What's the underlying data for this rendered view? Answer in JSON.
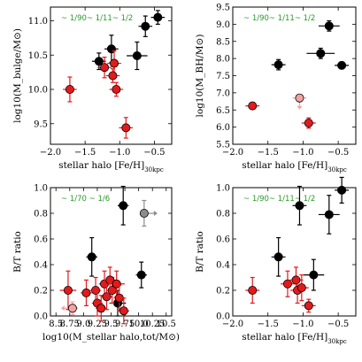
{
  "colors": {
    "black_series": "#000000",
    "red_series": "#e31a1c",
    "faded_red": "#f4a3a3",
    "gray_series": "#8c8c8c",
    "annotation": "#2a9a2a"
  },
  "chart_data": [
    {
      "type": "scatter",
      "xlabel": "stellar halo [Fe/H]",
      "xlabel_sub": "30kpc",
      "ylabel": "log10(M_bulge/M⊙)",
      "xlim": [
        -2.0,
        -0.25
      ],
      "ylim": [
        9.2,
        11.2
      ],
      "xticks": [
        -2.0,
        -1.5,
        -1.0,
        -0.5
      ],
      "xtick_labels": [
        "−2.0",
        "−1.5",
        "−1.0",
        "−0.5"
      ],
      "yticks": [
        9.5,
        10.0,
        10.5,
        11.0
      ],
      "ytick_labels": [
        "9.5",
        "10.0",
        "10.5",
        "11.0"
      ],
      "annotation": "~ 1/90~ 1/11~ 1/2",
      "series": [
        {
          "color": "black",
          "points": [
            {
              "x": -1.3,
              "y": 10.41,
              "xerr": 0.1,
              "yerr": 0.12
            },
            {
              "x": -1.12,
              "y": 10.59,
              "xerr": 0.1,
              "yerr": 0.2
            },
            {
              "x": -0.75,
              "y": 10.49,
              "xerr": 0.15,
              "yerr": 0.2
            },
            {
              "x": -0.63,
              "y": 10.92,
              "xerr": 0.1,
              "yerr": 0.15
            },
            {
              "x": -0.45,
              "y": 11.05,
              "xerr": 0.1,
              "yerr": 0.1
            }
          ]
        },
        {
          "color": "red",
          "points": [
            {
              "x": -1.72,
              "y": 10.0,
              "xerr": 0.1,
              "yerr": 0.18
            },
            {
              "x": -1.22,
              "y": 10.32,
              "xerr": 0.1,
              "yerr": 0.15
            },
            {
              "x": -1.08,
              "y": 10.38,
              "xerr": 0.1,
              "yerr": 0.18
            },
            {
              "x": -1.1,
              "y": 10.2,
              "xerr": 0.1,
              "yerr": 0.1
            },
            {
              "x": -1.05,
              "y": 10.0,
              "xerr": 0.1,
              "yerr": 0.1
            },
            {
              "x": -0.91,
              "y": 9.44,
              "xerr": 0.1,
              "yerr": 0.15
            }
          ]
        }
      ]
    },
    {
      "type": "scatter",
      "xlabel": "stellar halo [Fe/H]",
      "xlabel_sub": "30kpc",
      "ylabel": "log10(M_BH/M⊙)",
      "xlim": [
        -2.0,
        -0.25
      ],
      "ylim": [
        5.5,
        9.5
      ],
      "xticks": [
        -2.0,
        -1.5,
        -1.0,
        -0.5
      ],
      "xtick_labels": [
        "−2.0",
        "−1.5",
        "−1.0",
        "−0.5"
      ],
      "yticks": [
        5.5,
        6.0,
        6.5,
        7.0,
        7.5,
        8.0,
        8.5,
        9.0,
        9.5
      ],
      "ytick_labels": [
        "5.5",
        "6.0",
        "6.5",
        "7.0",
        "7.5",
        "8.0",
        "8.5",
        "9.0",
        "9.5"
      ],
      "annotation": "~ 1/90~ 1/11~ 1/2",
      "series": [
        {
          "color": "black",
          "points": [
            {
              "x": -1.35,
              "y": 7.82,
              "xerr": 0.1,
              "yerr": 0.15
            },
            {
              "x": -0.75,
              "y": 8.15,
              "xerr": 0.2,
              "yerr": 0.15
            },
            {
              "x": -0.63,
              "y": 8.95,
              "xerr": 0.15,
              "yerr": 0.15
            },
            {
              "x": -0.45,
              "y": 7.8,
              "xerr": 0.1,
              "yerr": 0.1
            }
          ]
        },
        {
          "color": "red",
          "points": [
            {
              "x": -1.72,
              "y": 6.62,
              "xerr": 0.1,
              "yerr": 0.1
            },
            {
              "x": -0.92,
              "y": 6.12,
              "xerr": 0.1,
              "yerr": 0.15
            }
          ]
        },
        {
          "color": "faded_red",
          "points": [
            {
              "x": -1.05,
              "y": 6.85,
              "xerr": 0.1,
              "yerr": 0.1,
              "arrow": "down"
            }
          ]
        }
      ]
    },
    {
      "type": "scatter",
      "xlabel": "log10(M_stellar halo,tot/M⊙)",
      "ylabel": "B/T ratio",
      "xlim": [
        8.4,
        10.6
      ],
      "ylim": [
        0.0,
        1.0
      ],
      "xticks": [
        8.5,
        8.75,
        9.0,
        9.25,
        9.5,
        9.75,
        10.0,
        10.25,
        10.5
      ],
      "xtick_labels": [
        "8.5",
        "8.75",
        "9.0",
        "9.25",
        "9.5",
        "9.75",
        "10.0",
        "10.25",
        "10.5"
      ],
      "yticks": [
        0.0,
        0.2,
        0.4,
        0.6,
        0.8,
        1.0
      ],
      "ytick_labels": [
        "0.0",
        "0.2",
        "0.4",
        "0.6",
        "0.8",
        "1.0"
      ],
      "annotation": "~ 1/70  ~ 1/6",
      "series": [
        {
          "color": "black",
          "points": [
            {
              "x": 9.15,
              "y": 0.46,
              "xerr": 0.1,
              "yerr": 0.15
            },
            {
              "x": 9.72,
              "y": 0.86,
              "xerr": 0.1,
              "yerr": 0.15
            },
            {
              "x": 10.05,
              "y": 0.32,
              "xerr": 0.1,
              "yerr": 0.1
            },
            {
              "x": 9.62,
              "y": 0.1,
              "xerr": 0.15,
              "yerr": 0.1
            }
          ]
        },
        {
          "color": "red",
          "points": [
            {
              "x": 8.72,
              "y": 0.2,
              "xerr": 0.15,
              "yerr": 0.15
            },
            {
              "x": 9.05,
              "y": 0.18,
              "xerr": 0.1,
              "yerr": 0.1
            },
            {
              "x": 9.22,
              "y": 0.2,
              "xerr": 0.1,
              "yerr": 0.1
            },
            {
              "x": 9.25,
              "y": 0.1,
              "xerr": 0.1,
              "yerr": 0.1
            },
            {
              "x": 9.32,
              "y": 0.06,
              "xerr": 0.1,
              "yerr": 0.1
            },
            {
              "x": 9.38,
              "y": 0.25,
              "xerr": 0.1,
              "yerr": 0.1
            },
            {
              "x": 9.42,
              "y": 0.15,
              "xerr": 0.1,
              "yerr": 0.1
            },
            {
              "x": 9.52,
              "y": 0.2,
              "xerr": 0.1,
              "yerr": 0.1
            },
            {
              "x": 9.48,
              "y": 0.28,
              "xerr": 0.1,
              "yerr": 0.1
            },
            {
              "x": 9.6,
              "y": 0.25,
              "xerr": 0.15,
              "yerr": 0.1
            },
            {
              "x": 9.65,
              "y": 0.14,
              "xerr": 0.1,
              "yerr": 0.1
            },
            {
              "x": 9.73,
              "y": 0.04,
              "xerr": 0.1,
              "yerr": 0.1
            }
          ]
        },
        {
          "color": "faded_red",
          "points": [
            {
              "x": 8.8,
              "y": 0.06,
              "xerr": 0.1,
              "yerr": 0.05,
              "arrow": "left"
            }
          ]
        },
        {
          "color": "gray",
          "points": [
            {
              "x": 10.1,
              "y": 0.8,
              "xerr": 0.05,
              "yerr": 0.1,
              "arrow": "right"
            }
          ]
        }
      ]
    },
    {
      "type": "scatter",
      "xlabel": "stellar halo [Fe/H]",
      "xlabel_sub": "30kpc",
      "ylabel": "B/T ratio",
      "xlim": [
        -2.0,
        -0.25
      ],
      "ylim": [
        0.0,
        1.0
      ],
      "xticks": [
        -2.0,
        -1.5,
        -1.0,
        -0.5
      ],
      "xtick_labels": [
        "−2.0",
        "−1.5",
        "−1.0",
        "−0.5"
      ],
      "yticks": [
        0.0,
        0.2,
        0.4,
        0.6,
        0.8,
        1.0
      ],
      "ytick_labels": [
        "0.0",
        "0.2",
        "0.4",
        "0.6",
        "0.8",
        "1.0"
      ],
      "annotation": "~ 1/90~ 1/11~ 1/2",
      "series": [
        {
          "color": "black",
          "points": [
            {
              "x": -1.35,
              "y": 0.46,
              "xerr": 0.1,
              "yerr": 0.15
            },
            {
              "x": -1.05,
              "y": 0.86,
              "xerr": 0.1,
              "yerr": 0.15
            },
            {
              "x": -0.85,
              "y": 0.32,
              "xerr": 0.15,
              "yerr": 0.12
            },
            {
              "x": -0.63,
              "y": 0.79,
              "xerr": 0.15,
              "yerr": 0.15
            },
            {
              "x": -0.45,
              "y": 0.98,
              "xerr": 0.1,
              "yerr": 0.1
            }
          ]
        },
        {
          "color": "red",
          "points": [
            {
              "x": -1.72,
              "y": 0.2,
              "xerr": 0.1,
              "yerr": 0.1
            },
            {
              "x": -1.22,
              "y": 0.25,
              "xerr": 0.1,
              "yerr": 0.1
            },
            {
              "x": -1.1,
              "y": 0.28,
              "xerr": 0.1,
              "yerr": 0.1
            },
            {
              "x": -1.08,
              "y": 0.2,
              "xerr": 0.1,
              "yerr": 0.1
            },
            {
              "x": -1.02,
              "y": 0.22,
              "xerr": 0.1,
              "yerr": 0.1
            },
            {
              "x": -0.92,
              "y": 0.08,
              "xerr": 0.1,
              "yerr": 0.05
            }
          ]
        }
      ]
    }
  ]
}
